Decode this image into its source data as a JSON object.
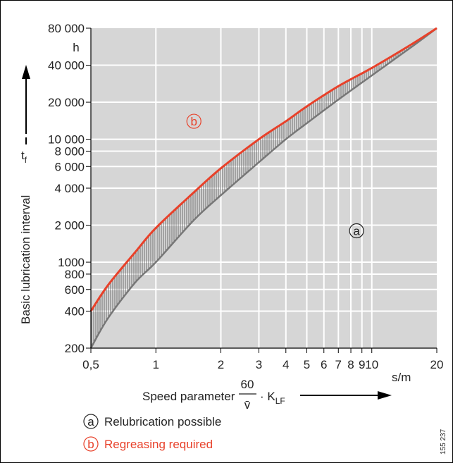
{
  "chart_data": {
    "type": "line",
    "x_scale": "log",
    "y_scale": "log",
    "xlim": [
      0.5,
      20
    ],
    "ylim": [
      200,
      80000
    ],
    "x_ticks": [
      {
        "value": 0.5,
        "label": "0,5"
      },
      {
        "value": 1,
        "label": "1"
      },
      {
        "value": 2,
        "label": "2"
      },
      {
        "value": 3,
        "label": "3"
      },
      {
        "value": 4,
        "label": "4"
      },
      {
        "value": 5,
        "label": "5"
      },
      {
        "value": 6,
        "label": "6"
      },
      {
        "value": 7,
        "label": "7"
      },
      {
        "value": 8,
        "label": "8"
      },
      {
        "value": 9,
        "label": "9"
      },
      {
        "value": 10,
        "label": "10"
      },
      {
        "value": 20,
        "label": "20"
      }
    ],
    "y_ticks": [
      {
        "value": 200,
        "label": "200"
      },
      {
        "value": 400,
        "label": "400"
      },
      {
        "value": 600,
        "label": "600"
      },
      {
        "value": 800,
        "label": "800"
      },
      {
        "value": 1000,
        "label": "1000"
      },
      {
        "value": 2000,
        "label": "2 000"
      },
      {
        "value": 4000,
        "label": "4 000"
      },
      {
        "value": 6000,
        "label": "6 000"
      },
      {
        "value": 8000,
        "label": "8 000"
      },
      {
        "value": 10000,
        "label": "10 000"
      },
      {
        "value": 20000,
        "label": "20 000"
      },
      {
        "value": 40000,
        "label": "40 000"
      },
      {
        "value": 80000,
        "label": "80 000"
      }
    ],
    "x_unit": "s/m",
    "y_unit": "h",
    "ylabel": "Basic lubrication interval",
    "ylabel_symbol": "t",
    "ylabel_symbol_sub": "f",
    "xlabel": "Speed parameter",
    "xlabel_fraction_num": "60",
    "xlabel_fraction_den": "v̄",
    "xlabel_factor": "· K",
    "xlabel_factor_sub": "LF",
    "grid": true,
    "series": [
      {
        "color": "#e8412a",
        "x": [
          0.5,
          0.6,
          0.8,
          1,
          1.5,
          2,
          3,
          4,
          5,
          7,
          10,
          15,
          20
        ],
        "y": [
          400,
          650,
          1200,
          1900,
          3700,
          5800,
          10000,
          14000,
          18500,
          27000,
          38000,
          58000,
          80000
        ]
      },
      {
        "color": "#777777",
        "x": [
          0.5,
          0.6,
          0.8,
          1,
          1.5,
          2,
          3,
          4,
          5,
          7,
          10,
          15,
          20
        ],
        "y": [
          200,
          350,
          680,
          1000,
          2200,
          3500,
          6500,
          10000,
          13500,
          21000,
          33000,
          55000,
          80000
        ]
      }
    ],
    "regions": [
      {
        "marker": "b",
        "color": "#e8412a",
        "x": 1.5,
        "y": 14000
      },
      {
        "marker": "a",
        "color": "#222222",
        "x": 8.5,
        "y": 1800
      }
    ],
    "legend": [
      {
        "marker": "a",
        "text": "Relubrication possible",
        "color": "#222222"
      },
      {
        "marker": "b",
        "text": "Regreasing required",
        "color": "#e8412a"
      }
    ],
    "figure_id": "155 237"
  }
}
